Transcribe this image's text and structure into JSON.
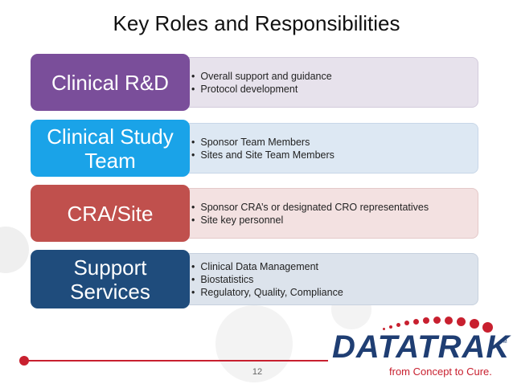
{
  "title": "Key Roles and Responsibilities",
  "colors": {
    "clinical_rd": "#7a4e9a",
    "clinical_study_team": "#1aa3e8",
    "cra_site": "#c0504d",
    "support_services": "#1f4c7c",
    "accent_red": "#c8202f",
    "logo_blue": "#1f3e73"
  },
  "roles": [
    {
      "label": "Clinical R&D",
      "bullets": [
        "Overall support and guidance",
        "Protocol development"
      ]
    },
    {
      "label": "Clinical Study Team",
      "bullets": [
        "Sponsor Team Members",
        "Sites and Site Team Members"
      ]
    },
    {
      "label": "CRA/Site",
      "bullets": [
        "Sponsor CRA’s or designated CRO representatives",
        "Site key personnel"
      ]
    },
    {
      "label": "Support Services",
      "bullets": [
        "Clinical Data Management",
        "Biostatistics",
        "Regulatory, Quality, Compliance"
      ]
    }
  ],
  "page_number": "12",
  "logo": {
    "wordmark": "DATATRAK",
    "trademark": "TM",
    "tagline": "from Concept to Cure."
  }
}
